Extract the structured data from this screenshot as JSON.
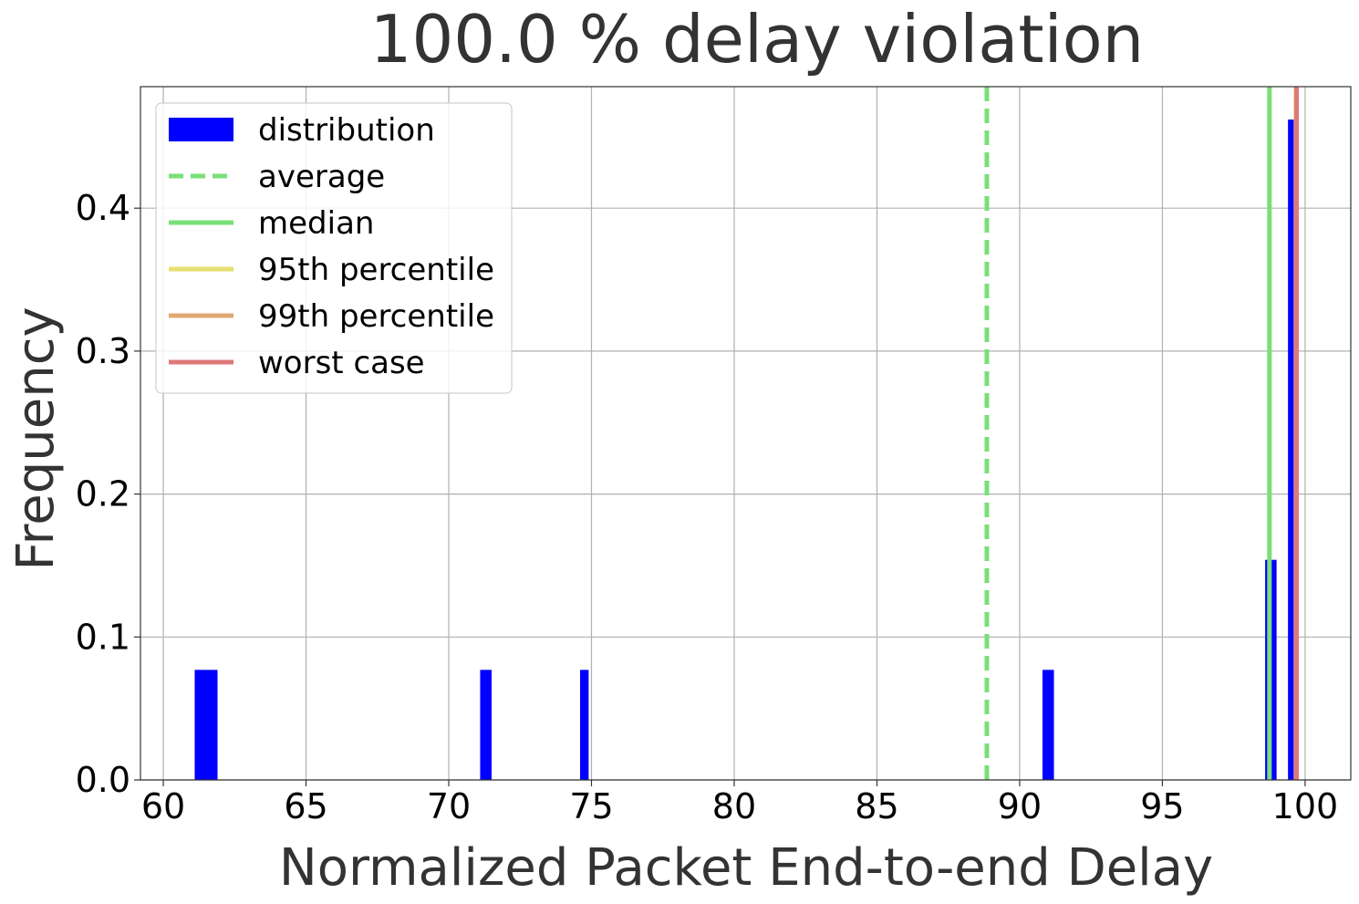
{
  "chart_data": {
    "type": "bar",
    "title": "100.0 % delay violation",
    "xlabel": "Normalized Packet End-to-end Delay",
    "ylabel": "Frequency",
    "xlim": [
      59.2,
      101.6
    ],
    "ylim": [
      0.0,
      0.485
    ],
    "xticks": [
      60,
      65,
      70,
      75,
      80,
      85,
      90,
      95,
      100
    ],
    "yticks": [
      0.0,
      0.1,
      0.2,
      0.3,
      0.4
    ],
    "grid": true,
    "legend_position": "top-left",
    "series": [
      {
        "name": "distribution",
        "kind": "histogram",
        "color": "#0000ff",
        "bins": [
          {
            "x0": 61.1,
            "x1": 61.9,
            "value": 0.077
          },
          {
            "x0": 71.1,
            "x1": 71.5,
            "value": 0.077
          },
          {
            "x0": 74.6,
            "x1": 74.9,
            "value": 0.077
          },
          {
            "x0": 90.8,
            "x1": 91.2,
            "value": 0.077
          },
          {
            "x0": 98.6,
            "x1": 99.0,
            "value": 0.154
          },
          {
            "x0": 99.4,
            "x1": 99.7,
            "value": 0.462
          }
        ]
      },
      {
        "name": "average",
        "kind": "vline",
        "x": 88.85,
        "color": "#77e077",
        "dashed": true
      },
      {
        "name": "median",
        "kind": "vline",
        "x": 98.75,
        "color": "#77e077",
        "dashed": false
      },
      {
        "name": "95th percentile",
        "kind": "vline",
        "x": 99.68,
        "color": "#e5e070",
        "dashed": false
      },
      {
        "name": "99th percentile",
        "kind": "vline",
        "x": 99.69,
        "color": "#e0a870",
        "dashed": false
      },
      {
        "name": "worst case",
        "kind": "vline",
        "x": 99.7,
        "color": "#e07878",
        "dashed": false
      }
    ]
  }
}
